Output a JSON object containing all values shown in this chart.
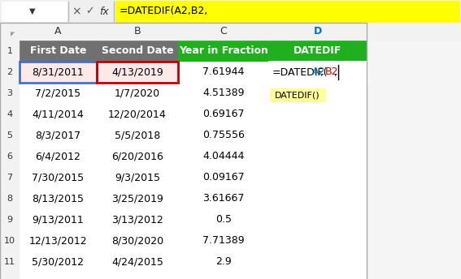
{
  "formula_bar_text": "=DATEDIF(A2,B2,",
  "formula_bar_bg": "#FFFF00",
  "col_headers": [
    "A",
    "B",
    "C",
    "D"
  ],
  "headers": [
    "First Date",
    "Second Date",
    "Year in Fraction",
    "DATEDIF"
  ],
  "header_bg_ab": "#707070",
  "header_bg_c": "#1FAF1F",
  "header_bg_d": "#1FAF1F",
  "header_text_color": "#FFFFFF",
  "col_a": [
    "8/31/2011",
    "7/2/2015",
    "4/11/2014",
    "8/3/2017",
    "6/4/2012",
    "7/30/2015",
    "8/13/2015",
    "9/13/2011",
    "12/13/2012",
    "5/30/2012"
  ],
  "col_b": [
    "4/13/2019",
    "1/7/2020",
    "12/20/2014",
    "5/5/2018",
    "6/20/2016",
    "9/3/2015",
    "3/25/2019",
    "3/13/2012",
    "8/30/2020",
    "4/24/2015"
  ],
  "col_c": [
    "7.61944",
    "4.51389",
    "0.69167",
    "0.75556",
    "4.04444",
    "0.09167",
    "3.61667",
    "0.5",
    "7.71389",
    "2.9"
  ],
  "tooltip_text": "DATEDIF()",
  "tooltip_bg": "#FFFF99",
  "row2_a_bg": "#FFE8E8",
  "row2_b_bg": "#FFE8E8",
  "cell_bg": "#FFFFFF",
  "grid_color": "#D0D0D0",
  "row_header_bg": "#F2F2F2",
  "col_header_bg": "#F2F2F2",
  "formula_color_black": "#000000",
  "formula_color_blue": "#0070C0",
  "formula_color_red": "#CC0000",
  "border_blue": "#4472C4",
  "border_red": "#C00000",
  "border_red_cell": "#FF0000"
}
